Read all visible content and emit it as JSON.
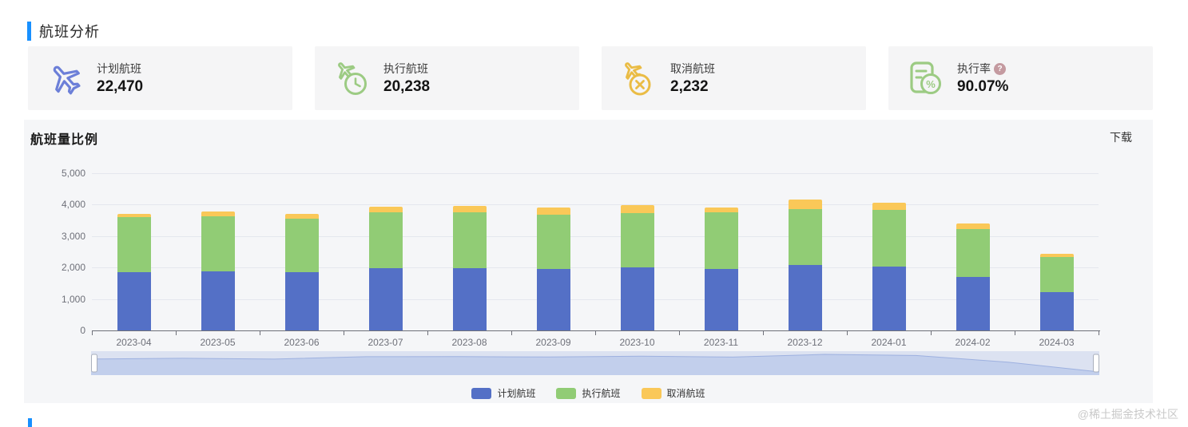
{
  "header": {
    "title": "航班分析"
  },
  "cards": [
    {
      "label": "计划航班",
      "value": "22,470"
    },
    {
      "label": "执行航班",
      "value": "20,238"
    },
    {
      "label": "取消航班",
      "value": "2,232"
    },
    {
      "label": "执行率",
      "value": "90.07%",
      "help_glyph": "?"
    }
  ],
  "panel": {
    "title": "航班量比例",
    "download_label": "下载"
  },
  "chart_data": {
    "type": "bar",
    "stacked": true,
    "title": "航班量比例",
    "categories": [
      "2023-04",
      "2023-05",
      "2023-06",
      "2023-07",
      "2023-08",
      "2023-09",
      "2023-10",
      "2023-11",
      "2023-12",
      "2024-01",
      "2024-02",
      "2024-03"
    ],
    "series": [
      {
        "key": "planned",
        "name": "计划航班",
        "color": "#5470c6",
        "values": [
          1857,
          1890,
          1850,
          1970,
          1975,
          1955,
          1995,
          1950,
          2085,
          2030,
          1700,
          1213
        ]
      },
      {
        "key": "executed",
        "name": "执行航班",
        "color": "#91cc75",
        "values": [
          1745,
          1740,
          1700,
          1785,
          1775,
          1735,
          1745,
          1800,
          1765,
          1800,
          1530,
          1118
        ]
      },
      {
        "key": "cancelled",
        "name": "取消航班",
        "color": "#fac858",
        "values": [
          112,
          150,
          150,
          185,
          200,
          220,
          250,
          150,
          320,
          230,
          170,
          95
        ]
      }
    ],
    "ylim": [
      0,
      5000
    ],
    "y_ticks": [
      "0",
      "1,000",
      "2,000",
      "3,000",
      "4,000",
      "5,000"
    ],
    "grid": true,
    "legend_position": "bottom",
    "has_data_zoom_slider": true
  },
  "watermark": "@稀土掘金技术社区",
  "colors": {
    "accent": "#1890ff",
    "icon_blue": "#6c7fd8",
    "icon_green": "#9ccb83",
    "icon_yellow": "#eabc45",
    "help_badge": "#c49aa0"
  }
}
